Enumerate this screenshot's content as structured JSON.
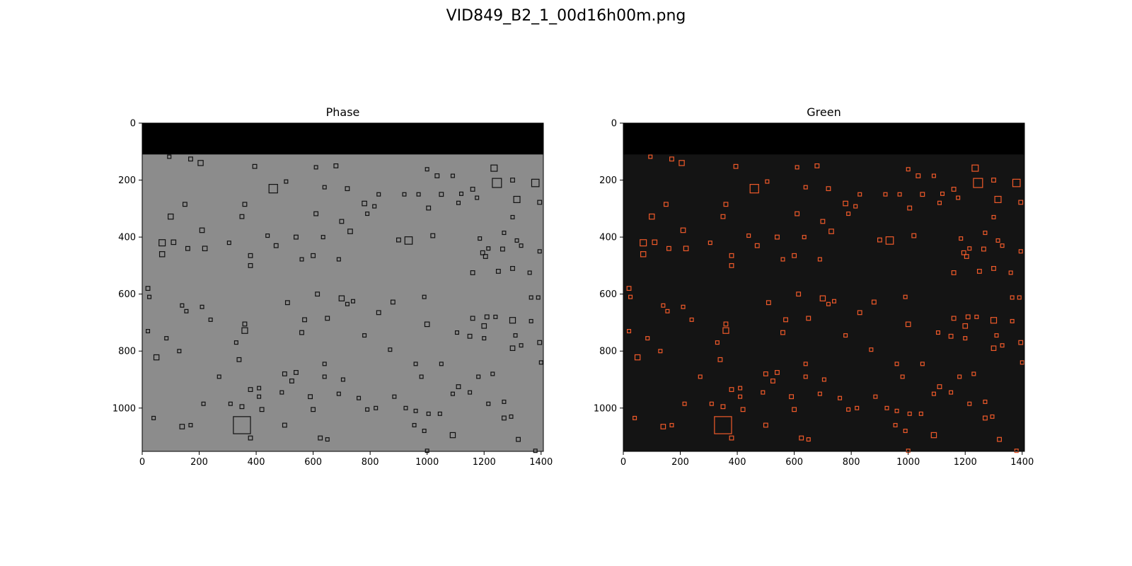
{
  "figure": {
    "title": "VID849_B2_1_00d16h00m.png"
  },
  "panels": [
    {
      "name": "phase",
      "title": "Phase",
      "background": "#8c8c8c",
      "box_color": "#111111",
      "x_ticks": [
        "0",
        "200",
        "400",
        "600",
        "800",
        "1000",
        "1200",
        "1400"
      ],
      "y_ticks": [
        "0",
        "200",
        "400",
        "600",
        "800",
        "1000"
      ]
    },
    {
      "name": "green",
      "title": "Green",
      "background": "#141414",
      "box_color": "#f05a2a",
      "x_ticks": [
        "0",
        "200",
        "400",
        "600",
        "800",
        "1000",
        "1200",
        "1400"
      ],
      "y_ticks": [
        "0",
        "200",
        "400",
        "600",
        "800",
        "1000"
      ]
    }
  ],
  "image_extent": {
    "width": 1408,
    "height": 1152,
    "masked_top_rows": 110
  },
  "detections": [
    [
      95,
      118,
      12
    ],
    [
      170,
      126,
      14
    ],
    [
      205,
      140,
      18
    ],
    [
      395,
      152,
      14
    ],
    [
      610,
      155,
      12
    ],
    [
      680,
      150,
      14
    ],
    [
      1235,
      158,
      22
    ],
    [
      1000,
      162,
      12
    ],
    [
      1245,
      210,
      32
    ],
    [
      1380,
      210,
      26
    ],
    [
      1300,
      200,
      14
    ],
    [
      1035,
      185,
      14
    ],
    [
      1090,
      185,
      12
    ],
    [
      460,
      230,
      30
    ],
    [
      505,
      205,
      12
    ],
    [
      640,
      225,
      12
    ],
    [
      720,
      230,
      14
    ],
    [
      830,
      250,
      12
    ],
    [
      920,
      250,
      12
    ],
    [
      970,
      250,
      12
    ],
    [
      1050,
      250,
      14
    ],
    [
      1120,
      248,
      12
    ],
    [
      1160,
      232,
      14
    ],
    [
      1315,
      268,
      22
    ],
    [
      1395,
      278,
      14
    ],
    [
      150,
      285,
      14
    ],
    [
      360,
      285,
      14
    ],
    [
      780,
      282,
      16
    ],
    [
      815,
      292,
      12
    ],
    [
      1005,
      298,
      14
    ],
    [
      1110,
      280,
      12
    ],
    [
      1175,
      262,
      12
    ],
    [
      100,
      328,
      18
    ],
    [
      350,
      328,
      14
    ],
    [
      610,
      318,
      14
    ],
    [
      790,
      318,
      12
    ],
    [
      1300,
      330,
      12
    ],
    [
      700,
      345,
      14
    ],
    [
      210,
      376,
      16
    ],
    [
      440,
      395,
      12
    ],
    [
      540,
      400,
      14
    ],
    [
      635,
      400,
      12
    ],
    [
      730,
      380,
      16
    ],
    [
      900,
      410,
      14
    ],
    [
      935,
      412,
      26
    ],
    [
      1020,
      395,
      14
    ],
    [
      1185,
      405,
      12
    ],
    [
      1270,
      385,
      12
    ],
    [
      1315,
      412,
      12
    ],
    [
      70,
      420,
      22
    ],
    [
      110,
      418,
      16
    ],
    [
      160,
      440,
      14
    ],
    [
      220,
      440,
      16
    ],
    [
      305,
      420,
      12
    ],
    [
      470,
      430,
      14
    ],
    [
      1195,
      455,
      14
    ],
    [
      1265,
      442,
      14
    ],
    [
      70,
      460,
      18
    ],
    [
      1215,
      440,
      12
    ],
    [
      1205,
      468,
      14
    ],
    [
      1330,
      430,
      12
    ],
    [
      1395,
      450,
      12
    ],
    [
      380,
      465,
      14
    ],
    [
      600,
      465,
      14
    ],
    [
      380,
      500,
      14
    ],
    [
      560,
      478,
      12
    ],
    [
      690,
      478,
      12
    ],
    [
      1160,
      525,
      14
    ],
    [
      1250,
      520,
      14
    ],
    [
      1300,
      510,
      14
    ],
    [
      1360,
      525,
      12
    ],
    [
      20,
      580,
      14
    ],
    [
      25,
      610,
      12
    ],
    [
      140,
      640,
      12
    ],
    [
      210,
      645,
      12
    ],
    [
      155,
      660,
      12
    ],
    [
      615,
      600,
      14
    ],
    [
      990,
      610,
      12
    ],
    [
      880,
      628,
      14
    ],
    [
      1365,
      612,
      12
    ],
    [
      1390,
      612,
      12
    ],
    [
      510,
      630,
      14
    ],
    [
      700,
      615,
      18
    ],
    [
      720,
      635,
      12
    ],
    [
      740,
      625,
      12
    ],
    [
      830,
      665,
      14
    ],
    [
      240,
      690,
      12
    ],
    [
      360,
      705,
      14
    ],
    [
      570,
      690,
      14
    ],
    [
      650,
      685,
      14
    ],
    [
      1000,
      706,
      16
    ],
    [
      1160,
      685,
      14
    ],
    [
      1200,
      712,
      16
    ],
    [
      1300,
      692,
      20
    ],
    [
      1365,
      695,
      12
    ],
    [
      1210,
      680,
      14
    ],
    [
      1240,
      680,
      12
    ],
    [
      20,
      730,
      12
    ],
    [
      360,
      728,
      20
    ],
    [
      560,
      735,
      14
    ],
    [
      780,
      745,
      12
    ],
    [
      1105,
      735,
      12
    ],
    [
      1150,
      748,
      14
    ],
    [
      1200,
      755,
      12
    ],
    [
      1310,
      745,
      12
    ],
    [
      1395,
      770,
      14
    ],
    [
      85,
      755,
      12
    ],
    [
      330,
      770,
      12
    ],
    [
      1300,
      790,
      16
    ],
    [
      1330,
      780,
      12
    ],
    [
      870,
      795,
      12
    ],
    [
      50,
      822,
      18
    ],
    [
      130,
      800,
      12
    ],
    [
      340,
      830,
      14
    ],
    [
      640,
      845,
      12
    ],
    [
      960,
      845,
      12
    ],
    [
      1050,
      845,
      12
    ],
    [
      1400,
      840,
      12
    ],
    [
      500,
      880,
      14
    ],
    [
      525,
      905,
      14
    ],
    [
      540,
      875,
      14
    ],
    [
      640,
      890,
      12
    ],
    [
      705,
      900,
      12
    ],
    [
      980,
      890,
      12
    ],
    [
      1180,
      890,
      12
    ],
    [
      1230,
      880,
      12
    ],
    [
      270,
      890,
      12
    ],
    [
      380,
      935,
      14
    ],
    [
      410,
      930,
      12
    ],
    [
      490,
      945,
      12
    ],
    [
      885,
      960,
      12
    ],
    [
      1150,
      945,
      12
    ],
    [
      1215,
      985,
      12
    ],
    [
      1270,
      978,
      12
    ],
    [
      410,
      960,
      12
    ],
    [
      590,
      960,
      14
    ],
    [
      690,
      950,
      12
    ],
    [
      760,
      965,
      12
    ],
    [
      1090,
      950,
      12
    ],
    [
      1110,
      925,
      14
    ],
    [
      215,
      985,
      12
    ],
    [
      310,
      985,
      12
    ],
    [
      350,
      995,
      14
    ],
    [
      420,
      1005,
      14
    ],
    [
      600,
      1005,
      14
    ],
    [
      790,
      1005,
      12
    ],
    [
      820,
      1000,
      12
    ],
    [
      925,
      1000,
      12
    ],
    [
      960,
      1010,
      12
    ],
    [
      1005,
      1020,
      12
    ],
    [
      1045,
      1020,
      12
    ],
    [
      1270,
      1035,
      14
    ],
    [
      1295,
      1030,
      12
    ],
    [
      140,
      1065,
      16
    ],
    [
      170,
      1060,
      12
    ],
    [
      40,
      1035,
      12
    ],
    [
      350,
      1060,
      60
    ],
    [
      380,
      1105,
      14
    ],
    [
      500,
      1060,
      14
    ],
    [
      625,
      1105,
      14
    ],
    [
      955,
      1060,
      12
    ],
    [
      990,
      1080,
      12
    ],
    [
      1090,
      1095,
      18
    ],
    [
      1320,
      1110,
      14
    ],
    [
      1380,
      1150,
      12
    ],
    [
      650,
      1110,
      12
    ],
    [
      1000,
      1150,
      12
    ]
  ]
}
